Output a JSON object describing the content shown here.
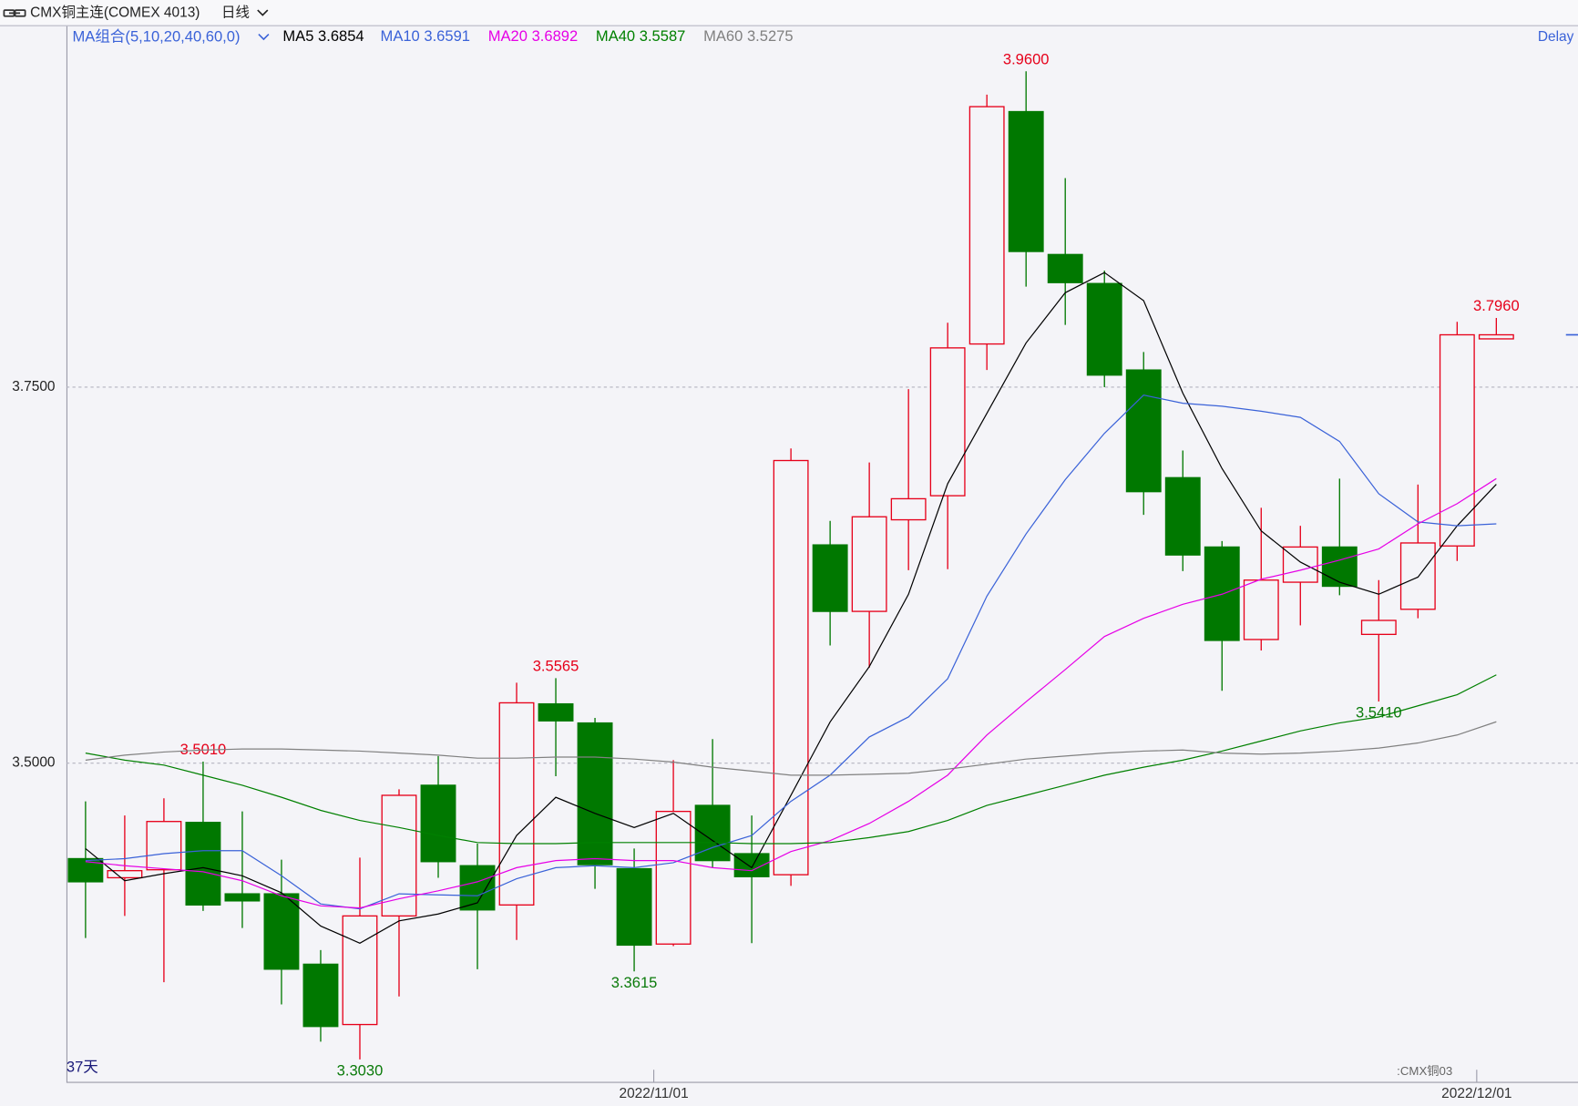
{
  "chart_data": {
    "type": "candlestick",
    "title": "CMX铜主连(COMEX 4013)",
    "period": "日线",
    "ma_group_label": "MA组合(5,10,20,40,60,0)",
    "status": "Delay",
    "day_count_label": "37天",
    "contract_label": ":CMX铜03",
    "categories": [
      null,
      null,
      null,
      null,
      null,
      null,
      null,
      null,
      null,
      null,
      null,
      null,
      null,
      null,
      null,
      "2022/11/01",
      null,
      null,
      null,
      null,
      null,
      null,
      null,
      null,
      null,
      null,
      null,
      null,
      null,
      null,
      null,
      null,
      null,
      null,
      null,
      null,
      "2022/12/01"
    ],
    "open": [
      3.4365,
      3.4238,
      3.4291,
      3.4606,
      3.4131,
      3.4131,
      3.3663,
      3.3262,
      3.3984,
      3.4853,
      3.4318,
      3.4057,
      3.5394,
      3.5267,
      3.4298,
      3.3797,
      3.4719,
      3.4398,
      3.4258,
      3.6451,
      3.6009,
      3.6618,
      3.6778,
      3.7787,
      3.9332,
      3.8382,
      3.8189,
      3.7614,
      3.6898,
      3.6437,
      3.5822,
      3.6203,
      3.6437,
      3.5856,
      3.6023,
      3.6444,
      3.7821
    ],
    "high": [
      3.4746,
      3.4652,
      3.4766,
      3.501,
      3.4679,
      3.4358,
      3.3757,
      3.4372,
      3.4826,
      3.5047,
      3.4465,
      3.5535,
      3.5565,
      3.5301,
      3.4432,
      3.502,
      3.516,
      3.4652,
      3.7092,
      3.6611,
      3.6999,
      3.7487,
      3.7928,
      3.9445,
      3.96,
      3.889,
      3.8275,
      3.7734,
      3.7079,
      3.6477,
      3.6698,
      3.6578,
      3.6892,
      3.6217,
      3.6852,
      3.7934,
      3.796
    ],
    "low": [
      3.3837,
      3.3984,
      3.3543,
      3.4017,
      3.3904,
      3.3396,
      3.3148,
      3.303,
      3.3449,
      3.4238,
      3.363,
      3.3824,
      3.4913,
      3.4164,
      3.3615,
      3.3783,
      3.4305,
      3.3803,
      3.4184,
      3.5782,
      3.5635,
      3.6283,
      3.629,
      3.7614,
      3.8168,
      3.7914,
      3.75,
      3.6651,
      3.6277,
      3.5481,
      3.5749,
      3.5916,
      3.6116,
      3.541,
      3.5963,
      3.6344,
      3.7821
    ],
    "close": [
      3.4211,
      3.4285,
      3.4612,
      3.4057,
      3.4084,
      3.363,
      3.3249,
      3.3984,
      3.4786,
      3.4345,
      3.4024,
      3.5401,
      3.5281,
      3.4325,
      3.379,
      3.4679,
      3.4352,
      3.4245,
      3.7012,
      3.6009,
      3.6638,
      3.6758,
      3.7761,
      3.9365,
      3.8402,
      3.8195,
      3.758,
      3.6805,
      3.6384,
      3.5816,
      3.6217,
      3.6437,
      3.6176,
      3.5949,
      3.6464,
      3.7848,
      3.7848
    ],
    "high_value_labels": [
      null,
      null,
      null,
      "3.5010",
      null,
      null,
      null,
      null,
      null,
      null,
      null,
      null,
      "3.5565",
      null,
      null,
      null,
      null,
      null,
      null,
      null,
      null,
      null,
      null,
      null,
      "3.9600",
      null,
      null,
      null,
      null,
      null,
      null,
      null,
      null,
      null,
      null,
      null,
      "3.7960"
    ],
    "low_value_labels": [
      null,
      null,
      null,
      null,
      null,
      null,
      null,
      "3.3030",
      null,
      null,
      null,
      null,
      null,
      null,
      "3.3615",
      null,
      null,
      null,
      null,
      null,
      null,
      null,
      null,
      null,
      null,
      null,
      null,
      null,
      null,
      null,
      null,
      null,
      null,
      "3.5410",
      null,
      null,
      null
    ],
    "up_color": "#e6001a",
    "down_color": "#007800",
    "label_down_color": "#0a7a0a",
    "last_price_color": "#3a62d8",
    "ylim": [
      3.2881,
      3.99
    ],
    "yticks": [
      {
        "value": 3.5,
        "label": "3.5000"
      },
      {
        "value": 3.75,
        "label": "3.7500"
      }
    ],
    "grid": true,
    "series": [
      {
        "name": "MA5",
        "color": "#000000",
        "values": [
          3.4432,
          3.4218,
          3.4265,
          3.4305,
          3.4251,
          3.4138,
          3.3917,
          3.3803,
          3.3951,
          3.3997,
          3.4071,
          3.4519,
          3.4773,
          3.4666,
          3.4572,
          3.4666,
          3.4485,
          3.4305,
          3.4786,
          3.5274,
          3.5642,
          3.6123,
          3.6858,
          3.7326,
          3.7794,
          3.8128,
          3.8262,
          3.8075,
          3.746,
          3.6959,
          3.6544,
          3.6337,
          3.6203,
          3.6123,
          3.6237,
          3.6578,
          3.6854
        ]
      },
      {
        "name": "MA10",
        "color": "#3a62d8",
        "values": [
          3.4352,
          3.4365,
          3.4398,
          3.4418,
          3.4418,
          3.4251,
          3.4064,
          3.4031,
          3.4131,
          3.4124,
          3.4118,
          3.4231,
          3.4305,
          3.4318,
          3.4305,
          3.4338,
          3.4439,
          3.4519,
          3.4746,
          3.492,
          3.5174,
          3.5307,
          3.5561,
          3.611,
          3.6524,
          3.6885,
          3.7193,
          3.7447,
          3.7393,
          3.7373,
          3.734,
          3.7299,
          3.7139,
          3.6791,
          3.6604,
          3.6578,
          3.6591
        ]
      },
      {
        "name": "MA20",
        "color": "#e600e6",
        "values": [
          3.4345,
          3.4318,
          3.4298,
          3.4278,
          3.4218,
          3.4118,
          3.4051,
          3.4037,
          3.4098,
          3.4151,
          3.4211,
          3.4305,
          3.4352,
          3.4365,
          3.4352,
          3.4352,
          3.4305,
          3.4285,
          3.4412,
          3.4485,
          3.4599,
          3.4746,
          3.492,
          3.5187,
          3.5408,
          3.5622,
          3.5842,
          3.5963,
          3.6056,
          3.6123,
          3.6223,
          3.6283,
          3.635,
          3.6424,
          3.6591,
          3.6725,
          3.6892
        ]
      },
      {
        "name": "MA40",
        "color": "#008000",
        "values": [
          3.5067,
          3.502,
          3.4987,
          3.492,
          3.4853,
          3.4773,
          3.4686,
          3.4619,
          3.4572,
          3.4519,
          3.4472,
          3.4465,
          3.4465,
          3.4472,
          3.4472,
          3.4472,
          3.4472,
          3.4465,
          3.4465,
          3.4472,
          3.4505,
          3.4545,
          3.4619,
          3.4719,
          3.4786,
          3.4853,
          3.492,
          3.4973,
          3.502,
          3.508,
          3.5147,
          3.5214,
          3.5267,
          3.5307,
          3.5381,
          3.5455,
          3.5587
        ]
      },
      {
        "name": "MA60",
        "color": "#808080",
        "values": [
          3.502,
          3.5053,
          3.5074,
          3.5087,
          3.5094,
          3.5094,
          3.5087,
          3.508,
          3.5067,
          3.5053,
          3.5033,
          3.5033,
          3.504,
          3.504,
          3.5027,
          3.5007,
          3.4973,
          3.4947,
          3.492,
          3.492,
          3.4926,
          3.4933,
          3.496,
          3.4993,
          3.5027,
          3.5047,
          3.5067,
          3.508,
          3.5087,
          3.5067,
          3.506,
          3.5067,
          3.508,
          3.51,
          3.5134,
          3.5187,
          3.5275
        ]
      }
    ]
  }
}
